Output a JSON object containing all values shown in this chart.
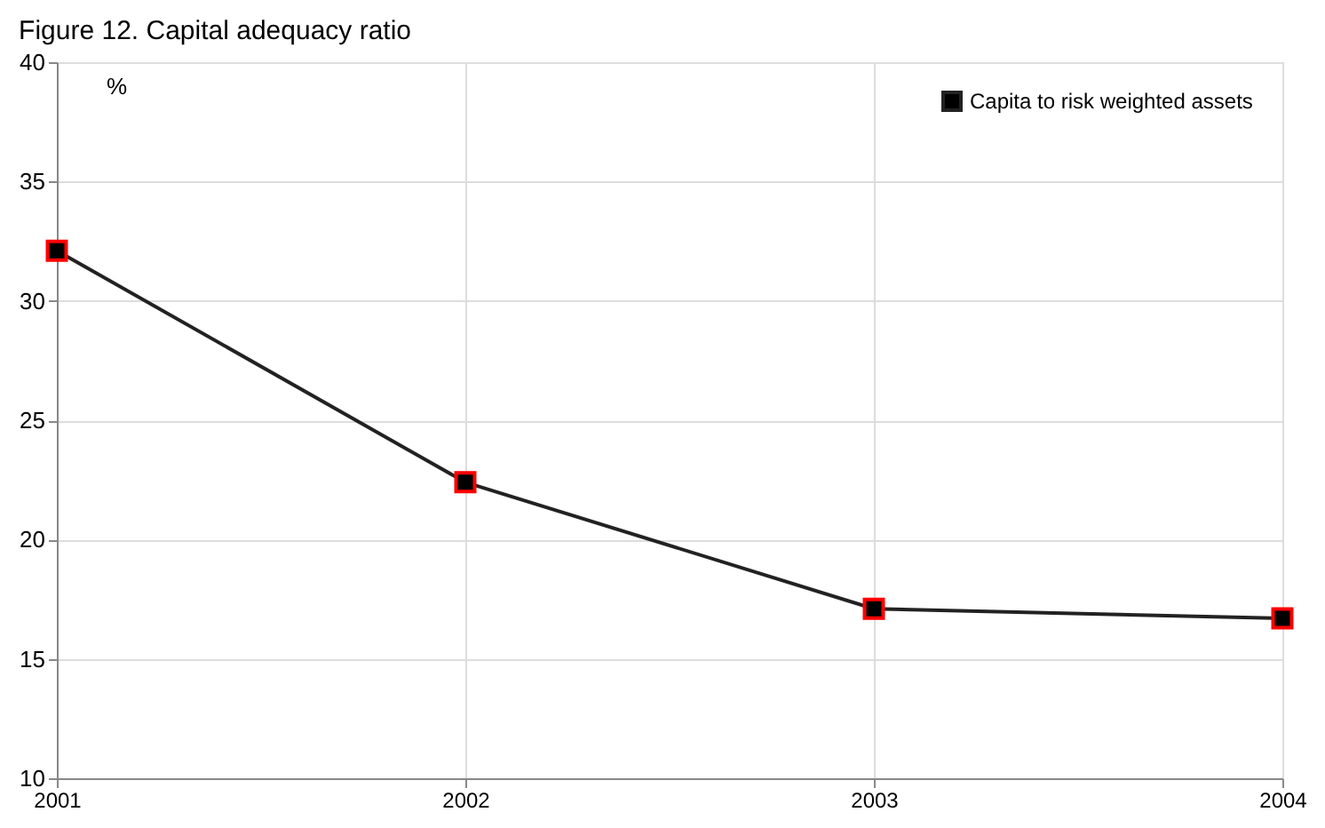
{
  "chart_data": {
    "type": "line",
    "title": "Figure 12. Capital adequacy ratio",
    "ylabel": "%",
    "x": [
      2001,
      2002,
      2003,
      2004
    ],
    "series": [
      {
        "name": "Capita to risk weighted assets",
        "color": "#222222",
        "values": [
          32.1,
          22.4,
          17.1,
          16.7
        ]
      }
    ],
    "xlim": [
      2001,
      2004
    ],
    "xticks": [
      2001,
      2002,
      2003,
      2004
    ],
    "ylim": [
      10,
      40
    ],
    "yticks": [
      10,
      15,
      20,
      25,
      30,
      35,
      40
    ],
    "grid": true,
    "legend": "top right",
    "marker": "square",
    "line_style": "solid"
  }
}
